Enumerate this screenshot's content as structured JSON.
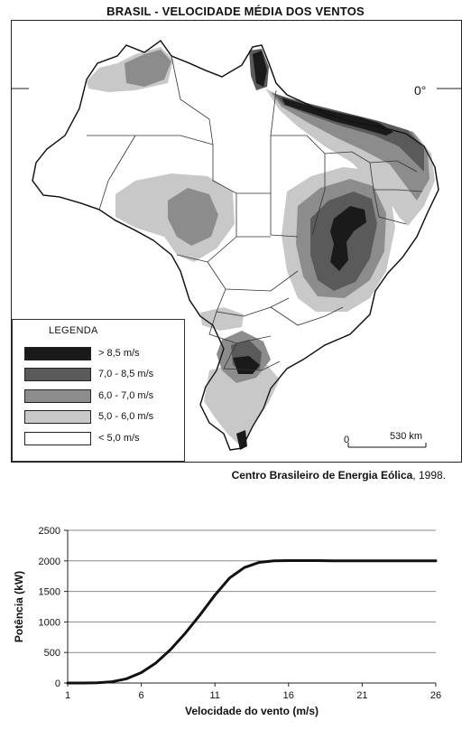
{
  "map": {
    "title": "BRASIL - VELOCIDADE MÉDIA DOS VENTOS",
    "equator_label": "0°",
    "legend": {
      "title": "LEGENDA",
      "items": [
        {
          "label": "> 8,5  m/s",
          "color": "#1a1a1a"
        },
        {
          "label": "7,0 - 8,5  m/s",
          "color": "#5a5a5a"
        },
        {
          "label": "6,0 - 7,0  m/s",
          "color": "#8c8c8c"
        },
        {
          "label": "5,0 - 6,0  m/s",
          "color": "#c8c8c8"
        },
        {
          "label": "< 5,0 m/s",
          "color": "#ffffff"
        }
      ]
    },
    "scale": {
      "zero": "0",
      "distance": "530 km"
    },
    "source_name": "Centro Brasileiro de Energia Eólica",
    "source_year": ", 1998."
  },
  "chart_data": {
    "type": "line",
    "xlabel": "Velocidade do vento (m/s)",
    "ylabel": "Potência (kW)",
    "x_ticks": [
      1,
      6,
      11,
      16,
      21,
      26
    ],
    "y_ticks": [
      0,
      500,
      1000,
      1500,
      2000,
      2500
    ],
    "xlim": [
      1,
      26
    ],
    "ylim": [
      0,
      2500
    ],
    "grid": "horizontal",
    "series": [
      {
        "x": [
          1,
          2,
          3,
          4,
          5,
          6,
          7,
          8,
          9,
          10,
          11,
          12,
          13,
          14,
          15,
          16,
          17,
          18,
          19,
          20,
          21,
          22,
          23,
          24,
          25,
          26
        ],
        "y": [
          0,
          0,
          5,
          20,
          70,
          170,
          330,
          550,
          820,
          1120,
          1440,
          1720,
          1890,
          1975,
          2000,
          2005,
          2005,
          2005,
          2000,
          2000,
          2000,
          2000,
          2000,
          2000,
          2000,
          2000
        ]
      }
    ]
  }
}
